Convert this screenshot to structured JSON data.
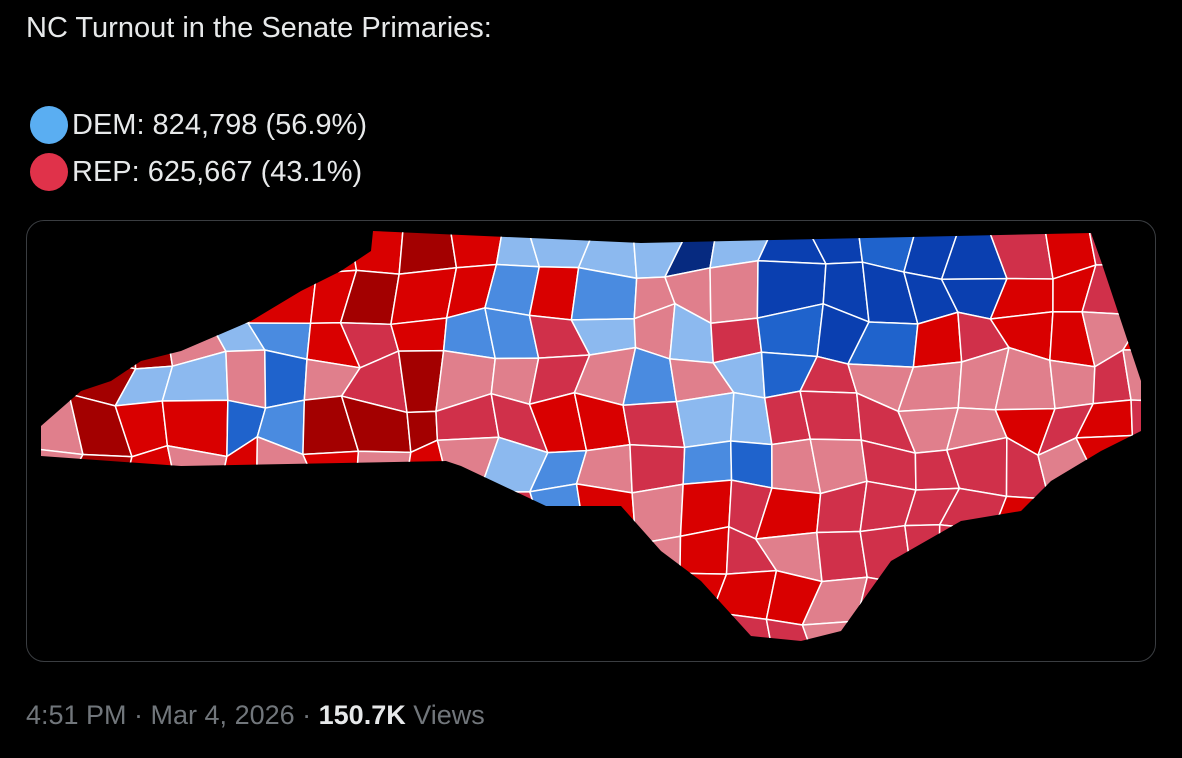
{
  "post": {
    "title": "NC Turnout in the Senate Primaries:",
    "legend": [
      {
        "label": "DEM: 824,798 (56.9%)",
        "color": "#5aaef2"
      },
      {
        "label": "REP: 625,667 (43.1%)",
        "color": "#e0324a"
      }
    ],
    "footer": {
      "time": "4:51 PM · Mar 4, 2026 ·",
      "views_count": "150.7K",
      "views_label": "Views"
    }
  }
}
